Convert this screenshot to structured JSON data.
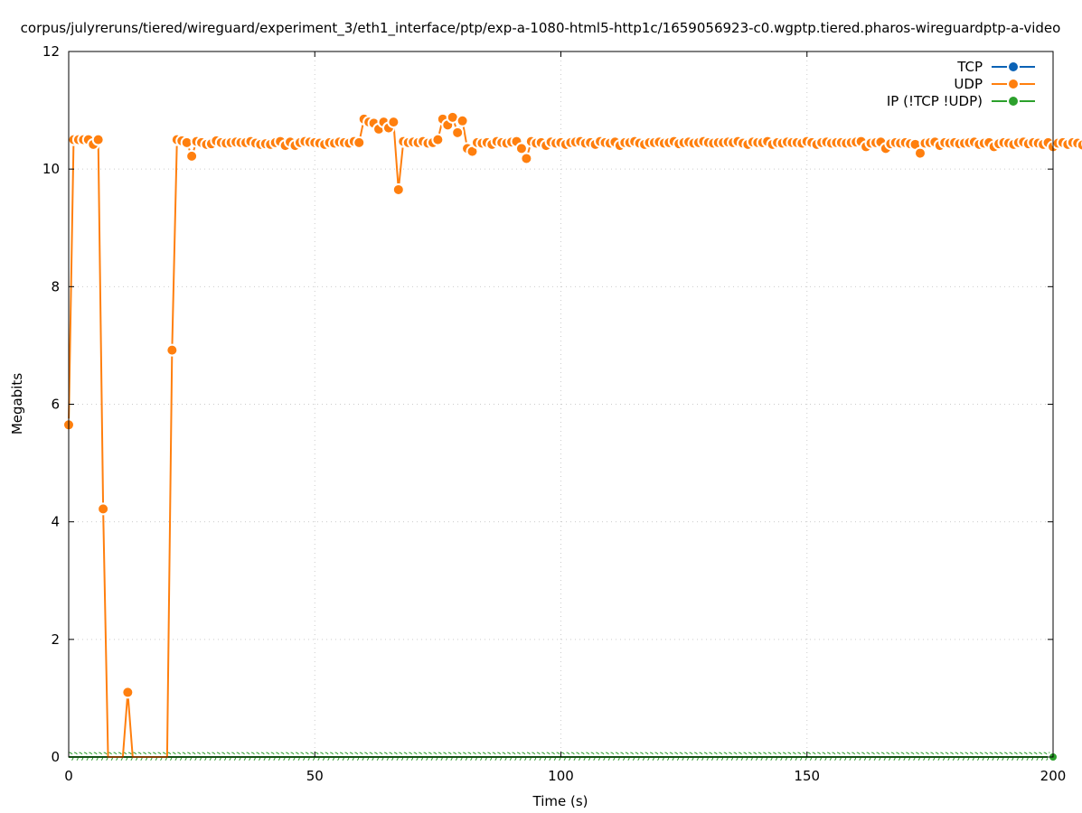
{
  "chart_data": {
    "type": "line",
    "title": "corpus/julyreruns/tiered/wireguard/experiment_3/eth1_interface/ptp/exp-a-1080-html5-http1c/1659056923-c0.wgptp.tiered.pharos-wireguardptp-a-video",
    "xlabel": "Time (s)",
    "ylabel": "Megabits",
    "xlim": [
      0,
      200
    ],
    "ylim": [
      0,
      12
    ],
    "xticks": [
      0,
      50,
      100,
      150,
      200
    ],
    "yticks": [
      0,
      2,
      4,
      6,
      8,
      10,
      12
    ],
    "grid": true,
    "legend_placement": "top-right",
    "x_start": 0,
    "x_step": 1,
    "series": [
      {
        "name": "TCP",
        "color": "#0b62b5",
        "values": []
      },
      {
        "name": "UDP",
        "color": "#ff7f0e",
        "values": [
          5.65,
          10.5,
          10.5,
          10.5,
          10.5,
          10.42,
          10.5,
          4.22,
          0,
          0,
          0,
          0,
          1.1,
          0,
          0,
          0,
          0,
          0,
          0,
          0,
          0,
          6.92,
          10.5,
          10.48,
          10.45,
          10.22,
          10.47,
          10.45,
          10.42,
          10.43,
          10.48,
          10.45,
          10.44,
          10.45,
          10.46,
          10.45,
          10.45,
          10.47,
          10.44,
          10.42,
          10.43,
          10.42,
          10.45,
          10.47,
          10.4,
          10.46,
          10.4,
          10.45,
          10.47,
          10.46,
          10.45,
          10.44,
          10.42,
          10.45,
          10.44,
          10.46,
          10.45,
          10.44,
          10.47,
          10.45,
          10.85,
          10.8,
          10.78,
          10.68,
          10.8,
          10.7,
          10.8,
          9.65,
          10.47,
          10.45,
          10.46,
          10.45,
          10.47,
          10.44,
          10.45,
          10.5,
          10.85,
          10.75,
          10.88,
          10.62,
          10.82,
          10.35,
          10.3,
          10.45,
          10.44,
          10.45,
          10.42,
          10.47,
          10.45,
          10.44,
          10.46,
          10.47,
          10.35,
          10.18,
          10.47,
          10.44,
          10.45,
          10.4,
          10.46,
          10.44,
          10.45,
          10.42,
          10.45,
          10.46,
          10.47,
          10.44,
          10.45,
          10.42,
          10.47,
          10.45,
          10.44,
          10.46,
          10.4,
          10.45,
          10.45,
          10.47,
          10.44,
          10.42,
          10.45,
          10.45,
          10.46,
          10.44,
          10.45,
          10.47,
          10.43,
          10.45,
          10.46,
          10.44,
          10.45,
          10.47,
          10.45,
          10.44,
          10.45,
          10.45,
          10.46,
          10.45,
          10.47,
          10.44,
          10.42,
          10.46,
          10.45,
          10.45,
          10.47,
          10.42,
          10.45,
          10.44,
          10.46,
          10.45,
          10.45,
          10.44,
          10.47,
          10.45,
          10.42,
          10.45,
          10.46,
          10.44,
          10.45,
          10.45,
          10.44,
          10.45,
          10.46,
          10.47,
          10.38,
          10.44,
          10.45,
          10.46,
          10.35,
          10.43,
          10.45,
          10.44,
          10.45,
          10.43,
          10.42,
          10.27,
          10.44,
          10.45,
          10.46,
          10.4,
          10.45,
          10.44,
          10.45,
          10.43,
          10.44,
          10.45,
          10.46,
          10.42,
          10.44,
          10.45,
          10.38,
          10.43,
          10.45,
          10.44,
          10.42,
          10.45,
          10.46,
          10.43,
          10.45,
          10.44,
          10.42,
          10.45,
          10.38,
          10.44,
          10.45,
          10.42,
          10.45,
          10.44,
          10.41,
          10.43,
          10.45,
          10.42,
          10.38
        ]
      },
      {
        "name": "IP (!TCP  !UDP)",
        "color": "#2ca02c",
        "values": "zeros"
      }
    ]
  }
}
